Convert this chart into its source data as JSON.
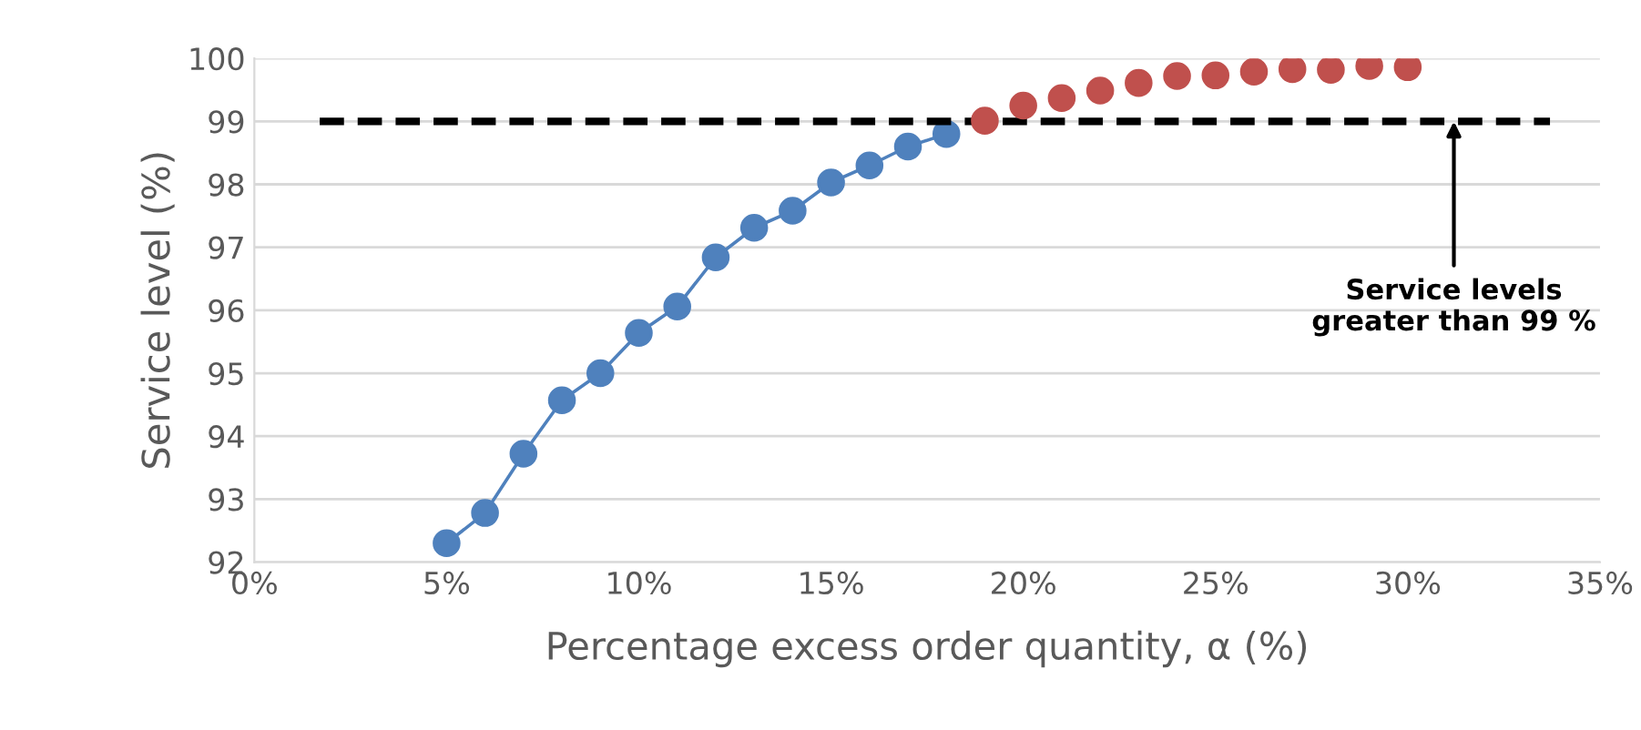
{
  "chart_data": {
    "type": "line",
    "xlabel": "Percentage excess order quantity, α (%)",
    "ylabel": "Service level (%)",
    "xlim": [
      0,
      35
    ],
    "ylim": [
      92,
      100
    ],
    "xticks": [
      {
        "value": 0,
        "label": "0%"
      },
      {
        "value": 5,
        "label": "5%"
      },
      {
        "value": 10,
        "label": "10%"
      },
      {
        "value": 15,
        "label": "15%"
      },
      {
        "value": 20,
        "label": "20%"
      },
      {
        "value": 25,
        "label": "25%"
      },
      {
        "value": 30,
        "label": "30%"
      },
      {
        "value": 35,
        "label": "35%"
      }
    ],
    "yticks": [
      92,
      93,
      94,
      95,
      96,
      97,
      98,
      99,
      100
    ],
    "grid": "y",
    "marker": "circle",
    "series": [
      {
        "color": "#4f81bd",
        "x": [
          5,
          6,
          7,
          8,
          9,
          10,
          11,
          12,
          13,
          14,
          15,
          16,
          17,
          18
        ],
        "values": [
          92.3,
          92.78,
          93.72,
          94.57,
          95.0,
          95.64,
          96.06,
          96.84,
          97.31,
          97.58,
          98.03,
          98.3,
          98.6,
          98.8
        ]
      },
      {
        "type": "scatter",
        "color": "#c0504d",
        "x": [
          19,
          20,
          21,
          22,
          23,
          24,
          25,
          26,
          27,
          28,
          29,
          30
        ],
        "values": [
          99.01,
          99.25,
          99.37,
          99.49,
          99.61,
          99.72,
          99.73,
          99.79,
          99.83,
          99.82,
          99.88,
          99.86
        ]
      },
      {
        "type": "line",
        "color": "#000000",
        "marker": "none",
        "line_style": "dashed",
        "x": [
          1.7,
          33.7
        ],
        "values": [
          99,
          99
        ]
      }
    ],
    "annotations": [
      {
        "text": "Service levels\ngreater than 99 %",
        "x": 31.2,
        "y": 99
      }
    ]
  }
}
